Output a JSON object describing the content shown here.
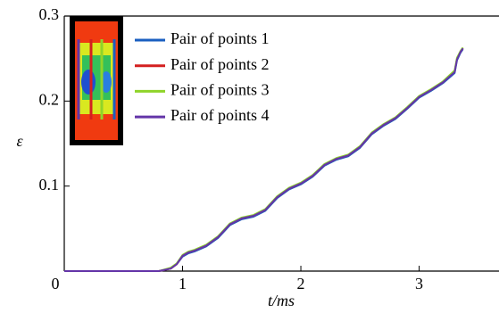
{
  "chart_data": {
    "type": "line",
    "xlabel": "t/ms",
    "ylabel": "ε",
    "x": [
      0,
      0.5,
      0.8,
      0.9,
      0.95,
      1.0,
      1.05,
      1.1,
      1.2,
      1.3,
      1.4,
      1.5,
      1.6,
      1.7,
      1.8,
      1.9,
      2.0,
      2.1,
      2.2,
      2.3,
      2.4,
      2.5,
      2.6,
      2.7,
      2.8,
      2.9,
      3.0,
      3.1,
      3.2,
      3.3,
      3.32,
      3.35,
      3.37
    ],
    "series": [
      {
        "name": "Pair of points 1",
        "color": "#1a5fc0",
        "values": [
          0,
          0,
          0,
          0.003,
          0.008,
          0.017,
          0.021,
          0.023,
          0.029,
          0.039,
          0.054,
          0.061,
          0.064,
          0.071,
          0.086,
          0.096,
          0.102,
          0.111,
          0.124,
          0.131,
          0.135,
          0.145,
          0.161,
          0.171,
          0.179,
          0.191,
          0.204,
          0.212,
          0.221,
          0.233,
          0.248,
          0.257,
          0.261
        ]
      },
      {
        "name": "Pair of points 2",
        "color": "#d42020",
        "values": [
          0,
          0,
          0,
          0.003,
          0.008,
          0.018,
          0.022,
          0.024,
          0.03,
          0.04,
          0.055,
          0.062,
          0.065,
          0.072,
          0.087,
          0.097,
          0.103,
          0.112,
          0.125,
          0.132,
          0.136,
          0.146,
          0.162,
          0.172,
          0.18,
          0.192,
          0.205,
          0.213,
          0.222,
          0.235,
          0.25,
          0.258,
          0.262
        ]
      },
      {
        "name": "Pair of points 3",
        "color": "#8fd42a",
        "values": [
          0,
          0,
          0,
          0.004,
          0.009,
          0.019,
          0.023,
          0.025,
          0.031,
          0.041,
          0.056,
          0.063,
          0.066,
          0.073,
          0.088,
          0.098,
          0.104,
          0.113,
          0.126,
          0.133,
          0.137,
          0.147,
          0.163,
          0.173,
          0.181,
          0.193,
          0.206,
          0.214,
          0.223,
          0.236,
          0.251,
          0.259,
          0.263
        ]
      },
      {
        "name": "Pair of points 4",
        "color": "#6435a8",
        "values": [
          0,
          0,
          0,
          0.003,
          0.008,
          0.018,
          0.022,
          0.024,
          0.03,
          0.04,
          0.055,
          0.062,
          0.065,
          0.072,
          0.087,
          0.097,
          0.103,
          0.112,
          0.125,
          0.132,
          0.136,
          0.146,
          0.162,
          0.172,
          0.18,
          0.192,
          0.205,
          0.213,
          0.222,
          0.234,
          0.249,
          0.258,
          0.262
        ]
      }
    ],
    "xlim": [
      0,
      3.675
    ],
    "ylim": [
      0,
      0.3
    ],
    "xticks": [
      0,
      1,
      2,
      3
    ],
    "yticks": [
      0.1,
      0.2,
      0.3
    ]
  }
}
